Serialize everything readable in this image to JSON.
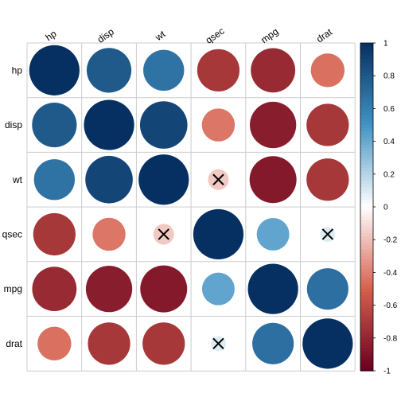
{
  "chart_data": {
    "type": "heatmap",
    "subtype": "correlation-circle-matrix",
    "variables": [
      "hp",
      "disp",
      "wt",
      "qsec",
      "mpg",
      "drat"
    ],
    "matrix": [
      [
        1.0,
        0.79,
        0.66,
        -0.71,
        -0.78,
        -0.45
      ],
      [
        0.79,
        1.0,
        0.89,
        -0.43,
        -0.85,
        -0.71
      ],
      [
        0.66,
        0.89,
        1.0,
        -0.17,
        -0.87,
        -0.71
      ],
      [
        -0.71,
        -0.43,
        -0.17,
        1.0,
        0.42,
        0.09
      ],
      [
        -0.78,
        -0.85,
        -0.87,
        0.42,
        1.0,
        0.68
      ],
      [
        -0.45,
        -0.71,
        -0.71,
        0.09,
        0.68,
        1.0
      ]
    ],
    "insignificant": [
      [
        2,
        3
      ],
      [
        3,
        2
      ],
      [
        3,
        5
      ],
      [
        5,
        3
      ]
    ],
    "colorbar": {
      "min": -1,
      "max": 1,
      "ticks": [
        "1",
        "0.8",
        "0.6",
        "0.4",
        "0.2",
        "0",
        "-0.2",
        "-0.4",
        "-0.6",
        "-0.8",
        "-1"
      ]
    },
    "colors": {
      "high": "#053061",
      "mid_high": "#4393C3",
      "mid": "#FFFFFF",
      "mid_low": "#D6604D",
      "low": "#67001F",
      "grid": "#cccccc"
    },
    "legend_position": "right"
  }
}
